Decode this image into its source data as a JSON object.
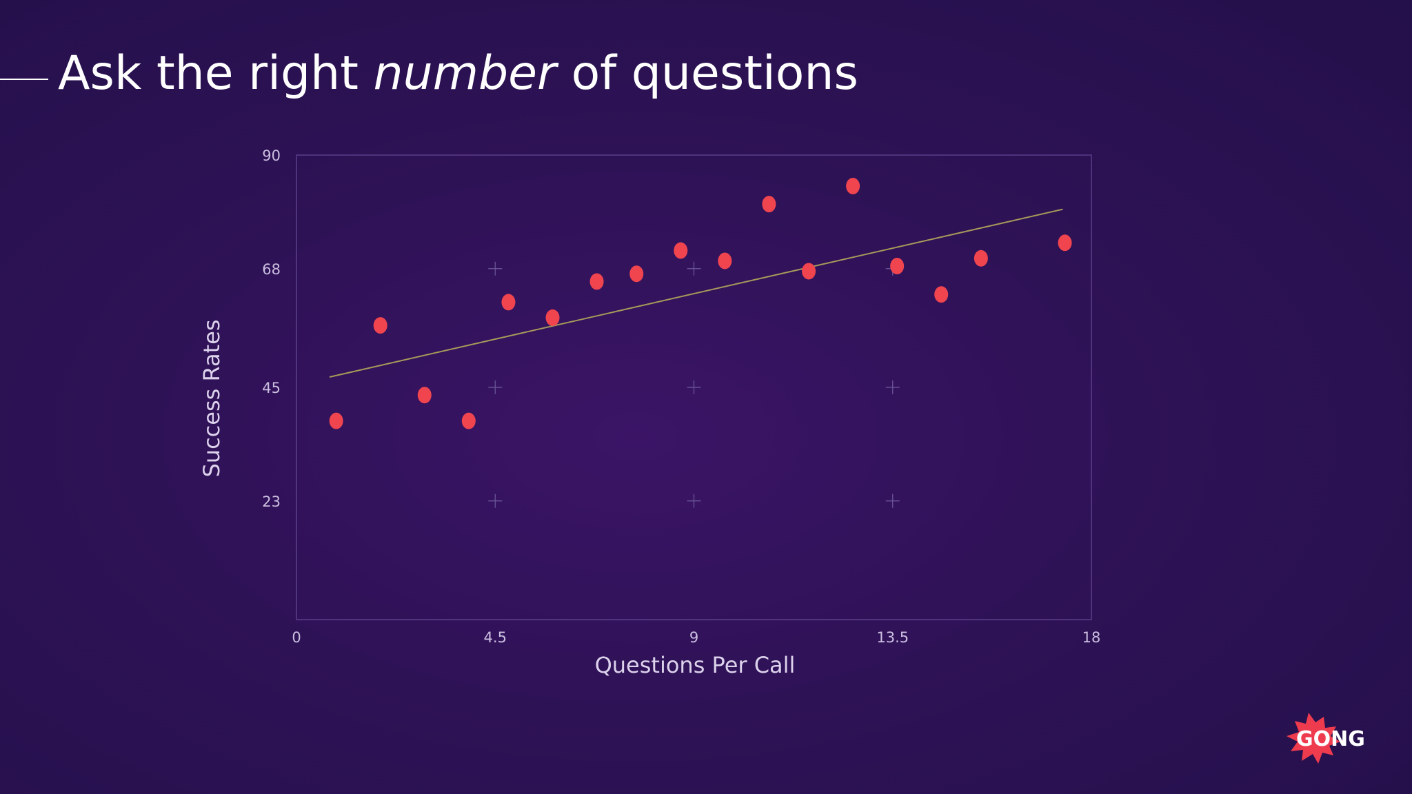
{
  "slide": {
    "title_pre": "Ask the right ",
    "title_em": "number",
    "title_post": " of questions"
  },
  "chart_data": {
    "type": "scatter",
    "title": "",
    "xlabel": "Questions Per Call",
    "ylabel": "Success Rates",
    "xlim": [
      0,
      18
    ],
    "ylim": [
      0,
      90
    ],
    "x_ticks": [
      "0",
      "4.5",
      "9",
      "13.5",
      "18"
    ],
    "x_tick_values": [
      0,
      4.5,
      9,
      13.5,
      18
    ],
    "y_ticks": [
      "23",
      "45",
      "68",
      "90"
    ],
    "y_tick_values": [
      23,
      45,
      68,
      90
    ],
    "grid": "sparse crosshair markers",
    "points": [
      {
        "x": 0.9,
        "y": 38.5
      },
      {
        "x": 1.9,
        "y": 57.0
      },
      {
        "x": 2.9,
        "y": 43.5
      },
      {
        "x": 3.9,
        "y": 38.5
      },
      {
        "x": 4.8,
        "y": 61.5
      },
      {
        "x": 5.8,
        "y": 58.5
      },
      {
        "x": 6.8,
        "y": 65.5
      },
      {
        "x": 7.7,
        "y": 67.0
      },
      {
        "x": 8.7,
        "y": 71.5
      },
      {
        "x": 9.7,
        "y": 69.5
      },
      {
        "x": 10.7,
        "y": 80.5
      },
      {
        "x": 11.6,
        "y": 67.5
      },
      {
        "x": 12.6,
        "y": 84.0
      },
      {
        "x": 13.6,
        "y": 68.5
      },
      {
        "x": 14.6,
        "y": 63.0
      },
      {
        "x": 15.5,
        "y": 70.0
      },
      {
        "x": 17.4,
        "y": 73.0
      }
    ],
    "trendline": {
      "x": [
        0.75,
        17.35
      ],
      "y": [
        47.0,
        79.5
      ]
    },
    "colors": {
      "point": "#f0454f",
      "trendline": "#a89a5a",
      "axis": "#5a3f8a",
      "tick_text": "#cbbfe0",
      "label_text": "#dcd2ec"
    }
  },
  "logo": {
    "text": "GONG",
    "color": "#ef3b4e"
  }
}
